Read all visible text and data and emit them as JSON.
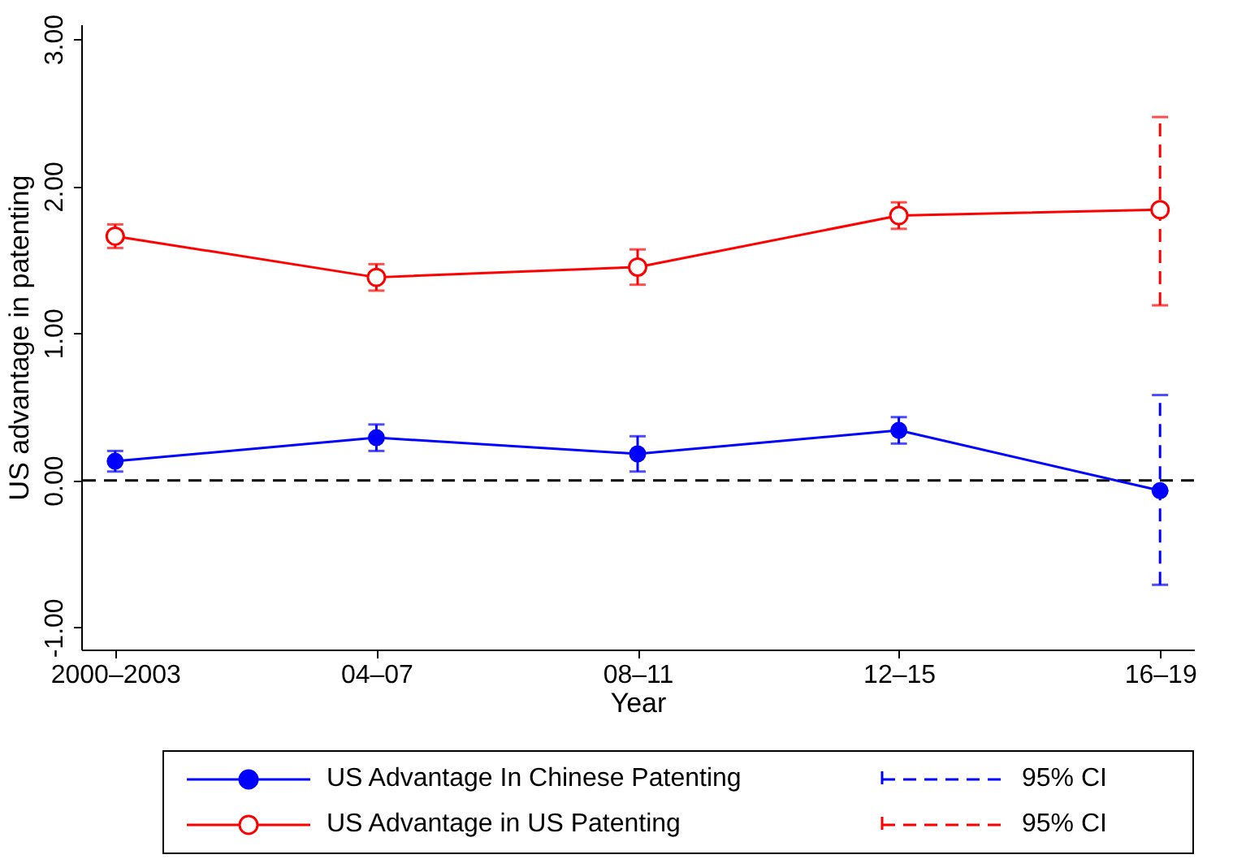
{
  "chart_data": {
    "type": "line",
    "xlabel": "Year",
    "ylabel": "US advantage in patenting",
    "categories": [
      "2000–2003",
      "04–07",
      "08–11",
      "12–15",
      "16–19"
    ],
    "series": [
      {
        "name": "US Advantage In Chinese Patenting",
        "color": "#0000ff",
        "values": [
          0.13,
          0.29,
          0.18,
          0.34,
          -0.07
        ],
        "errors": [
          0.07,
          0.09,
          0.12,
          0.09,
          [
            -0.71,
            0.58
          ]
        ]
      },
      {
        "name": "US Advantage in US Patenting",
        "color": "#ff0000",
        "values": [
          1.66,
          1.38,
          1.45,
          1.8,
          1.84
        ],
        "errors": [
          0.08,
          0.09,
          0.12,
          0.09,
          [
            1.19,
            2.47
          ]
        ]
      }
    ],
    "ylim": [
      -1.15,
      3.1
    ],
    "yticks": [
      {
        "value": -1,
        "label": "-1.00"
      },
      {
        "value": 0,
        "label": "0.00"
      },
      {
        "value": 1,
        "label": "1.00"
      },
      {
        "value": 2,
        "label": "2.00"
      },
      {
        "value": 3,
        "label": "3.00"
      }
    ],
    "ref_lines": [
      {
        "axis": "y",
        "value": 0,
        "color": "#000000",
        "line_style": "dashed"
      }
    ],
    "annotations": [
      "95% CI",
      "95% CI"
    ],
    "grid": false,
    "legend": "bottom",
    "marker": "circle",
    "line_style": "solid"
  }
}
